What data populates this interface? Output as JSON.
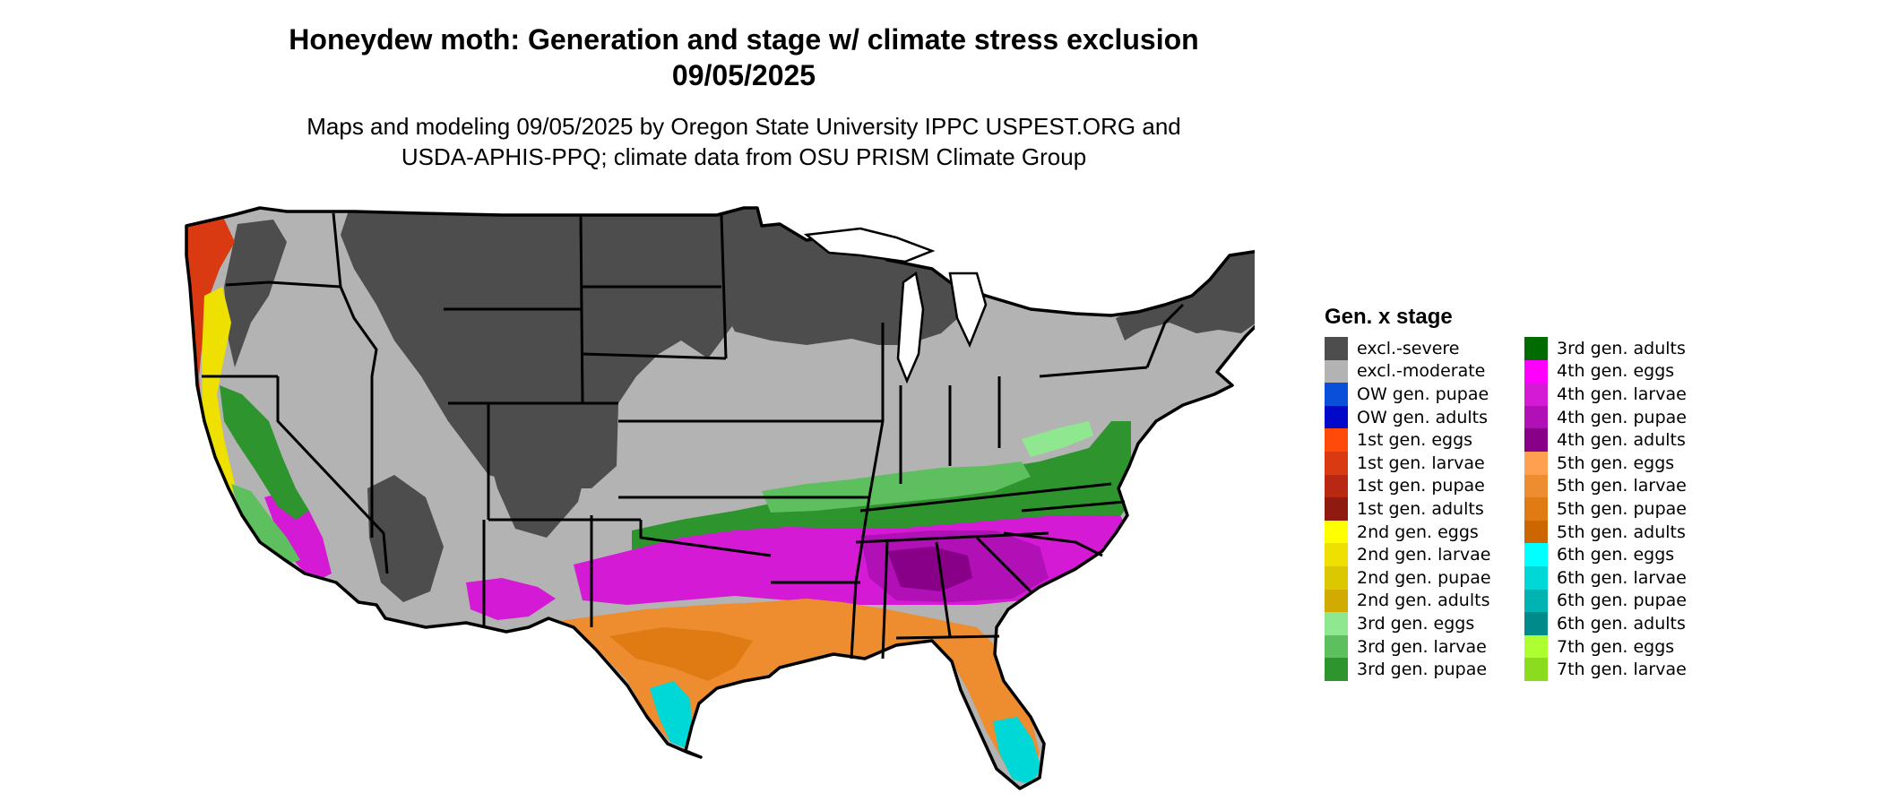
{
  "title": "Honeydew moth: Generation and stage w/ climate stress exclusion",
  "date": "09/05/2025",
  "subtitle_line1": "Maps and modeling 09/05/2025 by Oregon State University IPPC USPEST.ORG and",
  "subtitle_line2": "USDA-APHIS-PPQ; climate data from OSU PRISM Climate Group",
  "legend": {
    "title": "Gen. x stage",
    "items": [
      {
        "label": "excl.-severe",
        "color": "#4d4d4d"
      },
      {
        "label": "excl.-moderate",
        "color": "#b3b3b3"
      },
      {
        "label": "OW gen. pupae",
        "color": "#0a4fd9"
      },
      {
        "label": "OW gen. adults",
        "color": "#0008c9"
      },
      {
        "label": "1st gen. eggs",
        "color": "#ff4a0a"
      },
      {
        "label": "1st gen. larvae",
        "color": "#d93a12"
      },
      {
        "label": "1st gen. pupae",
        "color": "#b82812"
      },
      {
        "label": "1st gen. adults",
        "color": "#8f1a10"
      },
      {
        "label": "2nd gen. eggs",
        "color": "#ffff00"
      },
      {
        "label": "2nd gen. larvae",
        "color": "#eee000"
      },
      {
        "label": "2nd gen. pupae",
        "color": "#dcc800"
      },
      {
        "label": "2nd gen. adults",
        "color": "#d1ab00"
      },
      {
        "label": "3rd gen. eggs",
        "color": "#8fe88f"
      },
      {
        "label": "3rd gen. larvae",
        "color": "#5dbf5d"
      },
      {
        "label": "3rd gen. pupae",
        "color": "#2e952e"
      },
      {
        "label": "3rd gen. adults",
        "color": "#006b00"
      },
      {
        "label": "4th gen. eggs",
        "color": "#ff00ff"
      },
      {
        "label": "4th gen. larvae",
        "color": "#d41ad4"
      },
      {
        "label": "4th gen. pupae",
        "color": "#b010b6"
      },
      {
        "label": "4th gen. adults",
        "color": "#880088"
      },
      {
        "label": "5th gen. eggs",
        "color": "#ffa050"
      },
      {
        "label": "5th gen. larvae",
        "color": "#ee8c30"
      },
      {
        "label": "5th gen. pupae",
        "color": "#e07a12"
      },
      {
        "label": "5th gen. adults",
        "color": "#cc6600"
      },
      {
        "label": "6th gen. eggs",
        "color": "#00ffff"
      },
      {
        "label": "6th gen. larvae",
        "color": "#00d8d8"
      },
      {
        "label": "6th gen. pupae",
        "color": "#00b3b3"
      },
      {
        "label": "6th gen. adults",
        "color": "#008b8b"
      },
      {
        "label": "7th gen. eggs",
        "color": "#adff2f"
      },
      {
        "label": "7th gen. larvae",
        "color": "#8bdc1e"
      }
    ]
  }
}
